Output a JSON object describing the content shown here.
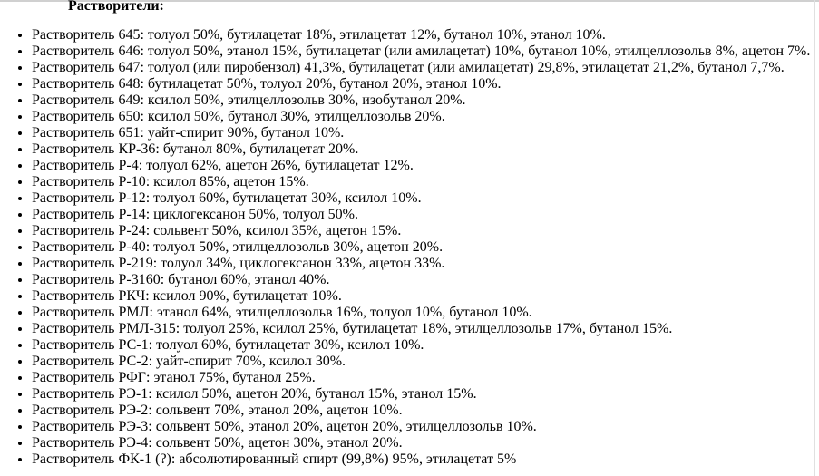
{
  "heading": "Растворители:",
  "items": [
    "Растворитель 645: толуол 50%, бутилацетат 18%, этилацетат 12%, бутанол 10%, этанол 10%.",
    "Растворитель 646: толуол 50%, этанол 15%, бутилацетат (или амилацетат) 10%, бутанол 10%, этилцеллозольв 8%, ацетон 7%.",
    "Растворитель 647: толуол (или пиробензол) 41,3%, бутилацетат (или амилацетат) 29,8%, этилацетат 21,2%, бутанол 7,7%.",
    "Растворитель 648: бутилацетат 50%, толуол 20%, бутанол 20%, этанол 10%.",
    "Растворитель 649: ксилол 50%, этилцеллозольв 30%, изобутанол 20%.",
    "Растворитель 650: ксилол 50%, бутанол 30%, этилцеллозольв 20%.",
    "Растворитель 651: уайт-спирит 90%, бутанол 10%.",
    "Растворитель КР-36: бутанол 80%, бутилацетат 20%.",
    "Растворитель Р-4: толуол 62%, ацетон 26%, бутилацетат 12%.",
    "Растворитель Р-10: ксилол 85%, ацетон 15%.",
    "Растворитель Р-12: толуол 60%, бутилацетат 30%, ксилол 10%.",
    "Растворитель Р-14: циклогексанон 50%, толуол 50%.",
    "Растворитель Р-24: сольвент 50%, ксилол 35%, ацетон 15%.",
    "Растворитель Р-40: толуол 50%, этилцеллозольв 30%, ацетон 20%.",
    "Растворитель Р-219: толуол 34%, циклогексанон 33%, ацетон 33%.",
    "Растворитель Р-3160: бутанол 60%, этанол 40%.",
    "Растворитель РКЧ: ксилол 90%, бутилацетат 10%.",
    "Растворитель РМЛ: этанол 64%, этилцеллозольв 16%, толуол 10%, бутанол 10%.",
    "Растворитель РМЛ-315: толуол 25%, ксилол 25%, бутилацетат 18%, этилцеллозольв 17%, бутанол 15%.",
    "Растворитель РС-1: толуол 60%, бутилацетат 30%, ксилол 10%.",
    "Растворитель РС-2: уайт-спирит 70%, ксилол 30%.",
    "Растворитель РФГ: этанол 75%, бутанол 25%.",
    "Растворитель РЭ-1: ксилол 50%, ацетон 20%, бутанол 15%, этанол 15%.",
    "Растворитель РЭ-2: сольвент 70%, этанол 20%, ацетон 10%.",
    "Растворитель РЭ-3: сольвент 50%, этанол 20%, ацетон 20%, этилцеллозольв 10%.",
    "Растворитель РЭ-4: сольвент 50%, ацетон 30%, этанол 20%.",
    "Растворитель ФК-1 (?): абсолютированный спирт (99,8%) 95%, этилацетат 5%"
  ]
}
